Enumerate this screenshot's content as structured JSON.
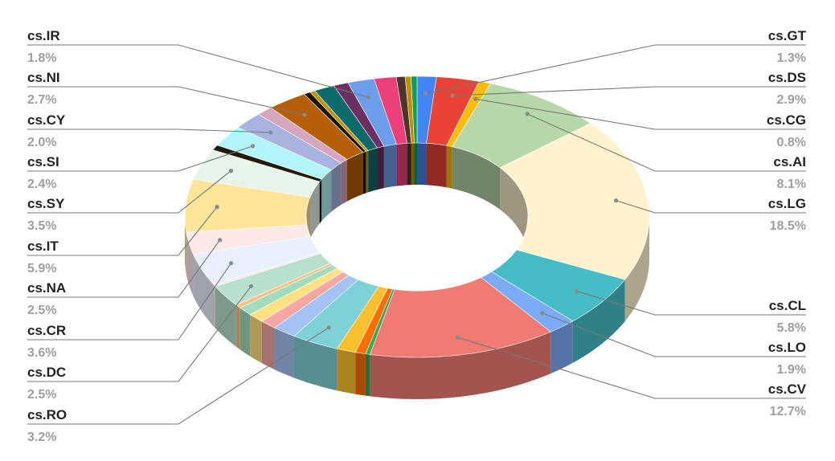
{
  "chart_data": {
    "type": "pie",
    "variant": "3d-donut",
    "labeled_slices": [
      {
        "name": "cs.GT",
        "label": "1.3%",
        "value": 1.3,
        "color": "#4285f4"
      },
      {
        "name": "cs.DS",
        "label": "2.9%",
        "value": 2.9,
        "color": "#ea4335"
      },
      {
        "name": "cs.CG",
        "label": "0.8%",
        "value": 0.8,
        "color": "#fbbc04"
      },
      {
        "name": "cs.AI",
        "label": "8.1%",
        "value": 8.1,
        "color": "#b6d7a8"
      },
      {
        "name": "cs.LG",
        "label": "18.5%",
        "value": 18.5,
        "color": "#fff2cc"
      },
      {
        "name": "cs.CL",
        "label": "5.8%",
        "value": 5.8,
        "color": "#46bdc6"
      },
      {
        "name": "cs.LO",
        "label": "1.9%",
        "value": 1.9,
        "color": "#7baaf7"
      },
      {
        "name": "cs.CV",
        "label": "12.7%",
        "value": 12.7,
        "color": "#f07b72"
      },
      {
        "name": "cs.RO",
        "label": "3.2%",
        "value": 3.2,
        "color": "#7ed1d7"
      },
      {
        "name": "cs.DC",
        "label": "2.5%",
        "value": 2.5,
        "color": "#b7e1cd"
      },
      {
        "name": "cs.CR",
        "label": "3.6%",
        "value": 3.6,
        "color": "#e8f0fe"
      },
      {
        "name": "cs.NA",
        "label": "2.5%",
        "value": 2.5,
        "color": "#fce8e6"
      },
      {
        "name": "cs.IT",
        "label": "5.9%",
        "value": 5.9,
        "color": "#ffe599"
      },
      {
        "name": "cs.SY",
        "label": "3.5%",
        "value": 3.5,
        "color": "#e6f4ea"
      },
      {
        "name": "cs.SI",
        "label": "2.4%",
        "value": 2.4,
        "color": "#b3f5fa"
      },
      {
        "name": "cs.CY",
        "label": "2.0%",
        "value": 2.0,
        "color": "#a8b3e0"
      },
      {
        "name": "cs.NI",
        "label": "2.7%",
        "value": 2.7,
        "color": "#b45f06"
      },
      {
        "name": "cs.IR",
        "label": "1.8%",
        "value": 1.8,
        "color": "#6d9eeb"
      }
    ],
    "unlabeled_slice_colors": [
      "#34a853",
      "#ff6d01",
      "#fbc02d",
      "#a4c2f4",
      "#f4a7a3",
      "#ffe082",
      "#a2dcc0",
      "#ffbf80",
      "#fde7e9",
      "#231a07",
      "#d5a6bd",
      "#1c1204",
      "#bf9000",
      "#0b6b6b",
      "#6c2f63",
      "#ec407a",
      "#4e342e",
      "#bf8f00",
      "#0f9d58"
    ]
  }
}
